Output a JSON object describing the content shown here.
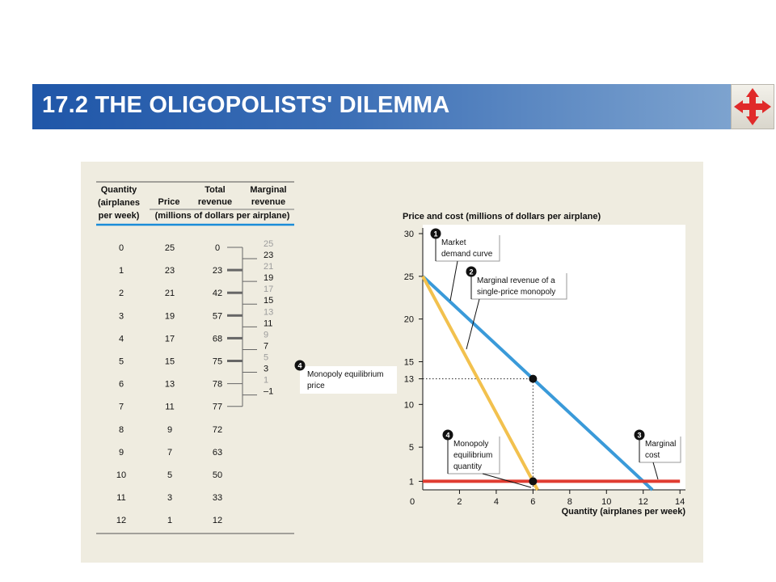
{
  "slide": {
    "title": "17.2 THE OLIGOPOLISTS' DILEMMA",
    "nav_icon": "four-way-arrow-icon"
  },
  "table": {
    "headers": {
      "quantity": [
        "Quantity",
        "(airplanes",
        "per week)"
      ],
      "price": "Price",
      "total_revenue": [
        "Total",
        "revenue"
      ],
      "marginal_revenue": [
        "Marginal",
        "revenue"
      ],
      "units": "(millions of dollars per airplane)"
    },
    "quantity": [
      "0",
      "1",
      "2",
      "3",
      "4",
      "5",
      "6",
      "7",
      "8",
      "9",
      "10",
      "11",
      "12"
    ],
    "price": [
      "25",
      "23",
      "21",
      "19",
      "17",
      "15",
      "13",
      "11",
      "9",
      "7",
      "5",
      "3",
      "1"
    ],
    "total_revenue": [
      "0",
      "23",
      "42",
      "57",
      "68",
      "75",
      "78",
      "77",
      "72",
      "63",
      "50",
      "33",
      "12"
    ],
    "marginal_revenue_faded": [
      "25",
      "21",
      "17",
      "13",
      "9",
      "5",
      "1"
    ],
    "marginal_revenue_bold": [
      "23",
      "19",
      "15",
      "11",
      "7",
      "3",
      "–1"
    ],
    "note_number": "4",
    "note_text": [
      "Monopoly equilibrium",
      "price"
    ],
    "colors": {
      "rule": "#1a8cd8",
      "faded": "#9c9c9c",
      "connector": "#666666"
    }
  },
  "chart_data": {
    "type": "line",
    "title": "Price and cost (millions of dollars per airplane)",
    "xlabel": "Quantity (airplanes per week)",
    "ylabel": "",
    "xlim": [
      0,
      14.3
    ],
    "ylim": [
      0,
      30
    ],
    "x_ticks": [
      0,
      2,
      4,
      6,
      8,
      10,
      12,
      14
    ],
    "y_ticks": [
      1,
      5,
      10,
      13,
      15,
      20,
      25,
      30
    ],
    "series": [
      {
        "name": "Market demand curve",
        "color": "#3a9ad9",
        "x": [
          0,
          12.5
        ],
        "y": [
          25,
          0
        ]
      },
      {
        "name": "Marginal revenue of a single-price monopoly",
        "color": "#f2c14e",
        "x": [
          0,
          6.25
        ],
        "y": [
          25,
          0
        ]
      },
      {
        "name": "Marginal cost",
        "color": "#e03c31",
        "x": [
          0,
          14
        ],
        "y": [
          1,
          1
        ]
      }
    ],
    "points": [
      {
        "x": 6,
        "y": 13
      },
      {
        "x": 6,
        "y": 1
      }
    ],
    "annotations": [
      {
        "number": "1",
        "lines": [
          "Market",
          "demand curve"
        ]
      },
      {
        "number": "2",
        "lines": [
          "Marginal revenue of a",
          "single-price monopoly"
        ]
      },
      {
        "number": "3",
        "lines": [
          "Marginal",
          "cost"
        ]
      },
      {
        "number": "4",
        "lines": [
          "Monopoly",
          "equilibrium",
          "quantity"
        ]
      }
    ],
    "grid": false,
    "legend": "none"
  }
}
